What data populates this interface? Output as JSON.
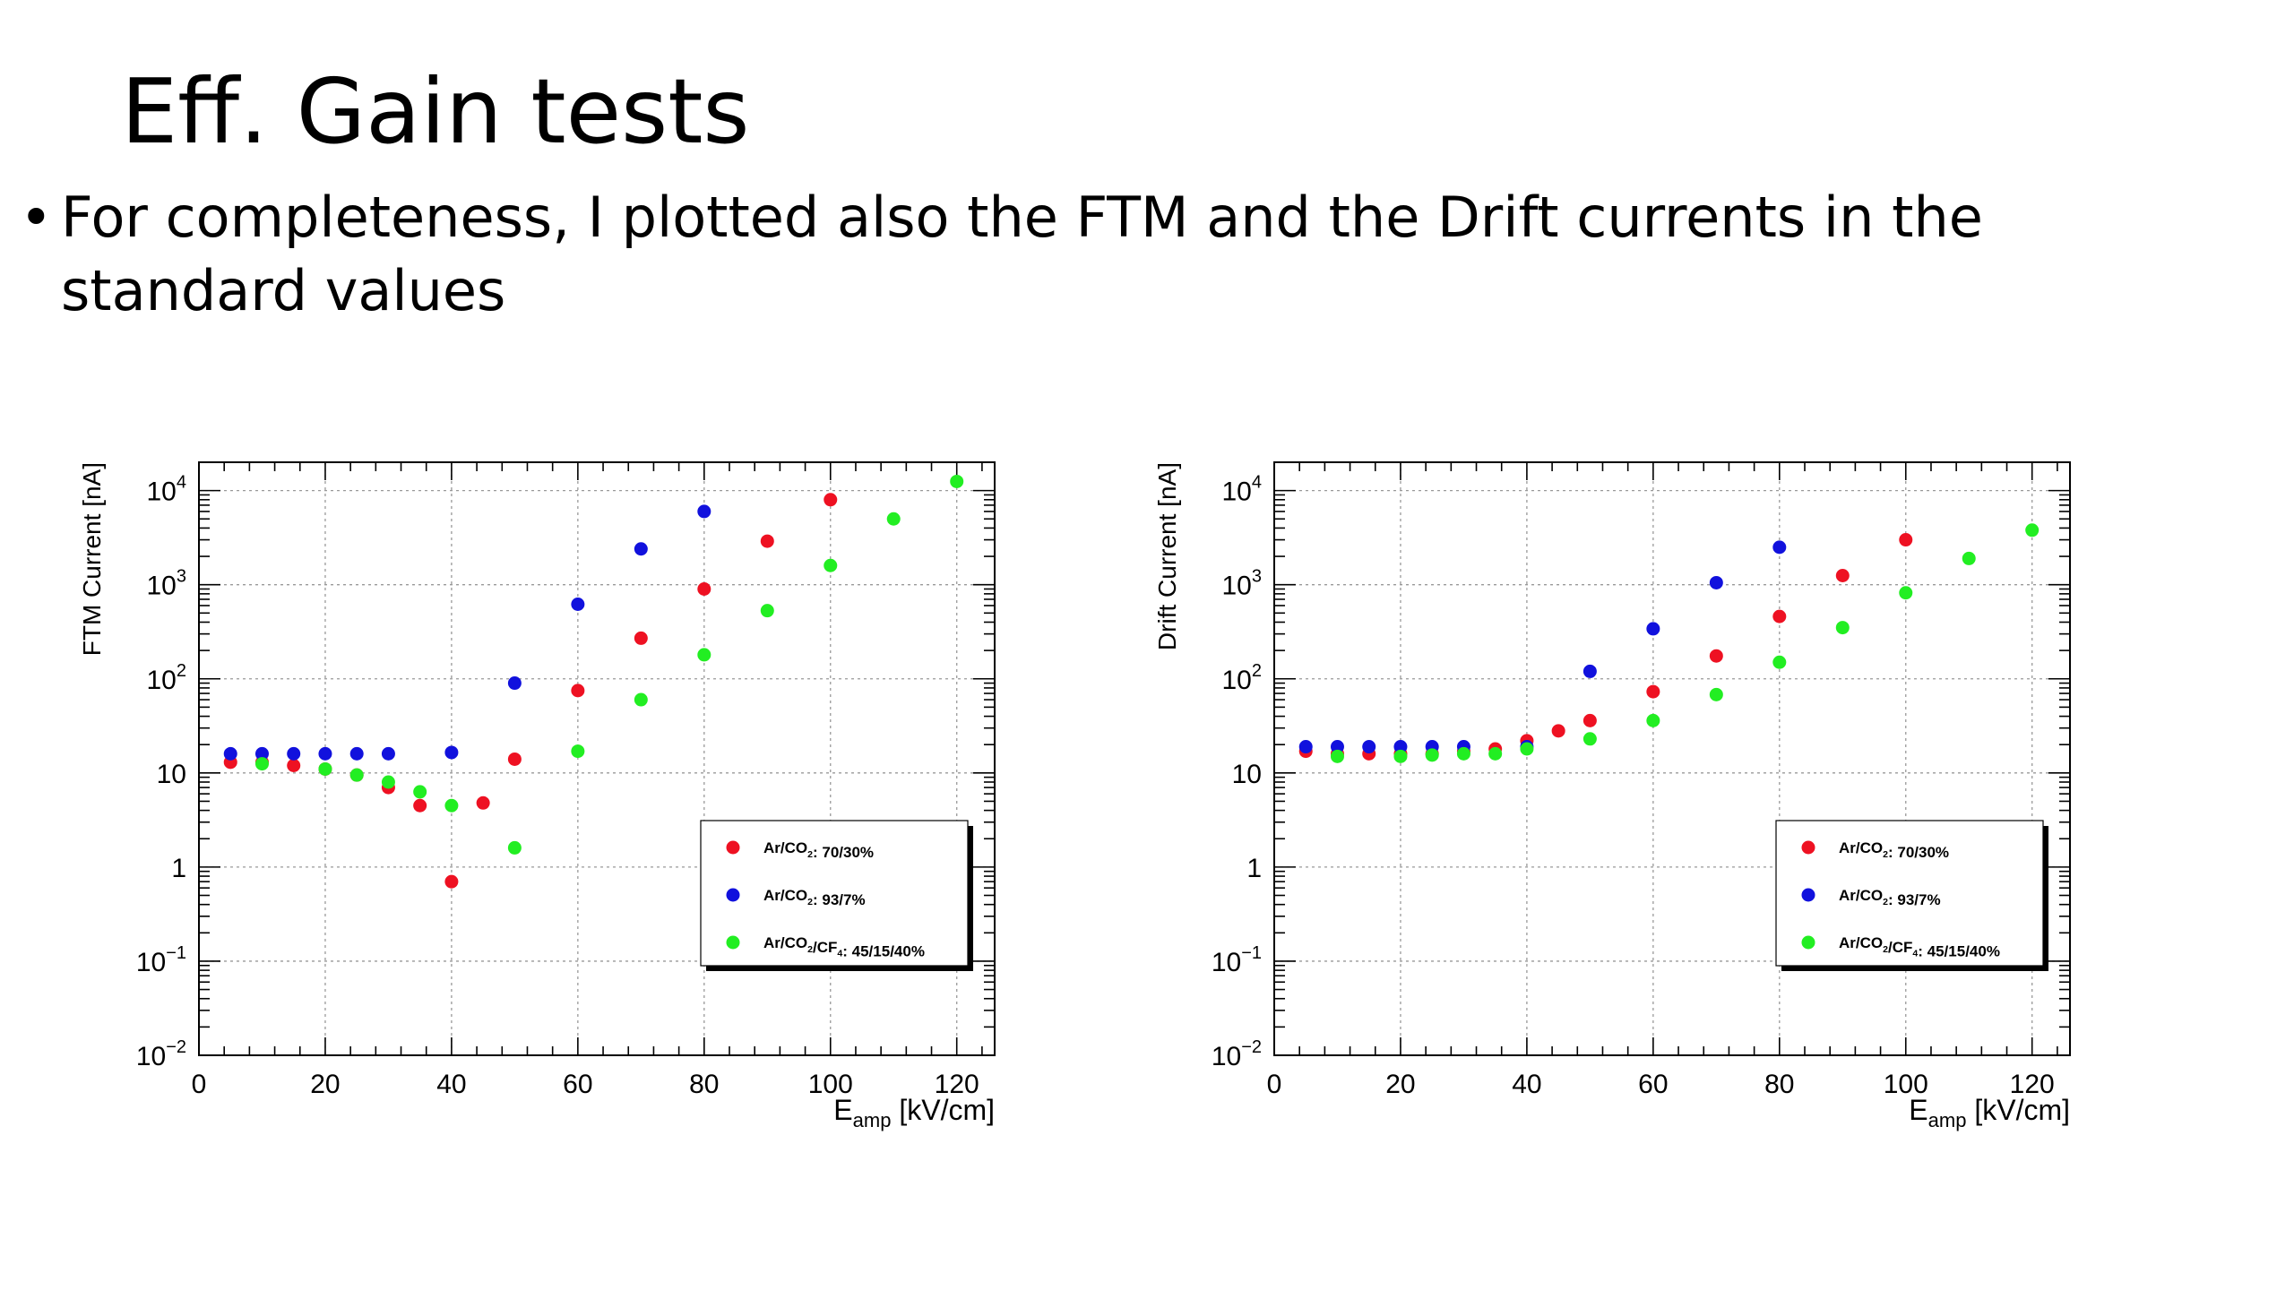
{
  "slide": {
    "title": "Eff. Gain tests",
    "bullet": "For completeness, I plotted also the FTM and the Drift currents in the standard values"
  },
  "chart_data": [
    {
      "type": "scatter",
      "title": "",
      "xlabel": "E",
      "xlabel_sub": "amp",
      "xlabel_unit": " [kV/cm]",
      "ylabel": "FTM Current [nA]",
      "xlim": [
        0,
        126
      ],
      "ylim": [
        0.01,
        20000
      ],
      "yscale": "log",
      "grid": true,
      "x_ticks": [
        0,
        20,
        40,
        60,
        80,
        100,
        120
      ],
      "legend_position": "bottom-right",
      "series": [
        {
          "name": "Ar/CO2: 70/30%",
          "color": "#ee1122",
          "points": [
            [
              5,
              13
            ],
            [
              10,
              13
            ],
            [
              15,
              12
            ],
            [
              20,
              11
            ],
            [
              25,
              9.5
            ],
            [
              30,
              7
            ],
            [
              35,
              4.5
            ],
            [
              40,
              0.7
            ],
            [
              45,
              4.8
            ],
            [
              50,
              14
            ],
            [
              60,
              75
            ],
            [
              70,
              270
            ],
            [
              80,
              900
            ],
            [
              90,
              2900
            ],
            [
              100,
              8000
            ]
          ]
        },
        {
          "name": "Ar/CO2: 93/7%",
          "color": "#1111dd",
          "points": [
            [
              5,
              16
            ],
            [
              10,
              16
            ],
            [
              15,
              16
            ],
            [
              20,
              16
            ],
            [
              25,
              16
            ],
            [
              30,
              16
            ],
            [
              40,
              16.5
            ],
            [
              50,
              90
            ],
            [
              60,
              620
            ],
            [
              70,
              2400
            ],
            [
              80,
              6000
            ]
          ]
        },
        {
          "name": "Ar/CO2/CF4: 45/15/40%",
          "color": "#22ee22",
          "points": [
            [
              10,
              12.5
            ],
            [
              20,
              11
            ],
            [
              25,
              9.5
            ],
            [
              30,
              8
            ],
            [
              35,
              6.3
            ],
            [
              40,
              4.5
            ],
            [
              50,
              1.6
            ],
            [
              60,
              17
            ],
            [
              70,
              60
            ],
            [
              80,
              180
            ],
            [
              90,
              530
            ],
            [
              100,
              1600
            ],
            [
              110,
              5000
            ],
            [
              120,
              12500
            ]
          ]
        }
      ]
    },
    {
      "type": "scatter",
      "title": "",
      "xlabel": "E",
      "xlabel_sub": "amp",
      "xlabel_unit": " [kV/cm]",
      "ylabel": "Drift Current [nA]",
      "xlim": [
        0,
        126
      ],
      "ylim": [
        0.01,
        20000
      ],
      "yscale": "log",
      "grid": true,
      "x_ticks": [
        0,
        20,
        40,
        60,
        80,
        100,
        120
      ],
      "legend_position": "bottom-right",
      "series": [
        {
          "name": "Ar/CO2: 70/30%",
          "color": "#ee1122",
          "points": [
            [
              5,
              17
            ],
            [
              10,
              16
            ],
            [
              15,
              16
            ],
            [
              20,
              16
            ],
            [
              25,
              16
            ],
            [
              30,
              17
            ],
            [
              35,
              18
            ],
            [
              40,
              22
            ],
            [
              45,
              28
            ],
            [
              50,
              36
            ],
            [
              60,
              73
            ],
            [
              70,
              175
            ],
            [
              80,
              460
            ],
            [
              90,
              1250
            ],
            [
              100,
              3000
            ]
          ]
        },
        {
          "name": "Ar/CO2: 93/7%",
          "color": "#1111dd",
          "points": [
            [
              5,
              19
            ],
            [
              10,
              19
            ],
            [
              15,
              19
            ],
            [
              20,
              19
            ],
            [
              25,
              19
            ],
            [
              30,
              19
            ],
            [
              40,
              19
            ],
            [
              50,
              120
            ],
            [
              60,
              340
            ],
            [
              70,
              1050
            ],
            [
              80,
              2500
            ]
          ]
        },
        {
          "name": "Ar/CO2/CF4: 45/15/40%",
          "color": "#22ee22",
          "points": [
            [
              10,
              15
            ],
            [
              20,
              15
            ],
            [
              25,
              15.5
            ],
            [
              30,
              16
            ],
            [
              35,
              16
            ],
            [
              40,
              18
            ],
            [
              50,
              23
            ],
            [
              60,
              36
            ],
            [
              70,
              68
            ],
            [
              80,
              150
            ],
            [
              90,
              350
            ],
            [
              100,
              820
            ],
            [
              110,
              1900
            ],
            [
              120,
              3800
            ]
          ]
        }
      ]
    }
  ]
}
